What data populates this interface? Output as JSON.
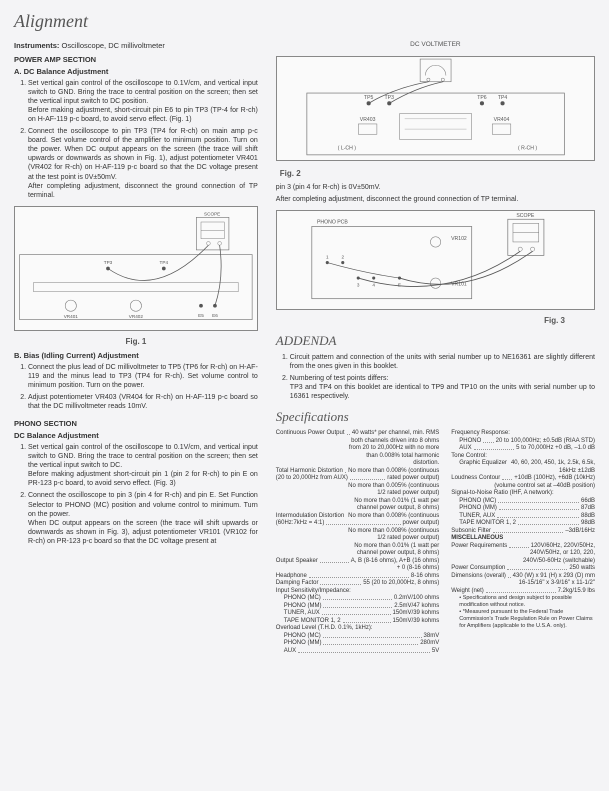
{
  "title": "Alignment",
  "instruments_label": "Instruments:",
  "instruments_value": "Oscilloscope, DC millivoltmeter",
  "power_amp_section": "POWER AMP SECTION",
  "dc_balance_heading": "A. DC Balance Adjustment",
  "pa_step1": "Set vertical gain control of the oscilloscope to 0.1V/cm, and vertical input switch to GND. Bring the trace to central position on the screen; then set the vertical input switch to DC position.",
  "pa_step1b": "Before making adjustment, short-circuit pin E6 to pin TP3 (TP-4 for R-ch) on H-AF-119 p-c board, to avoid servo effect. (Fig. 1)",
  "pa_step2": "Connect the oscilloscope to pin TP3 (TP4 for R-ch) on main amp p-c board. Set volume control of the amplifier to minimum position. Turn on the power. When DC output appears on the screen (the trace will shift upwards or downwards as shown in Fig. 1), adjust potentiometer VR401 (VR402 for R-ch) on H-AF-119 p-c board so that the DC voltage present at the test point is 0V±50mV.",
  "pa_step2b": "After completing adjustment, disconnect the ground connection of TP terminal.",
  "fig1_caption": "Fig. 1",
  "bias_heading": "B. Bias (Idling Current) Adjustment",
  "bias_step1": "Connect the plus lead of DC millivoltmeter to TP5 (TP6 for R-ch) on H-AF-119 and the minus lead to TP3 (TP4 for R-ch). Set volume control to minimum position. Turn on the power.",
  "bias_step2": "Adjust potentiometer VR403 (VR404 for R-ch) on H-AF-119 p-c board so that the DC millivoltmeter reads 10mV.",
  "phono_section": "PHONO SECTION",
  "phono_dc_heading": "DC Balance Adjustment",
  "ph_step1": "Set vertical gain control of the oscilloscope to 0.1V/cm, and vertical input switch to GND. Bring the trace to central position on the screen; then set the vertical input switch to DC.",
  "ph_step1b": "Before making adjustment short-circuit pin 1 (pin 2 for R-ch) to pin E on PR-123 p-c board, to avoid servo effect. (Fig. 3)",
  "ph_step2": "Connect the oscilloscope to pin 3 (pin 4 for R-ch) and pin E. Set Function Selector to PHONO (MC) position and volume control to minimum. Turn on the power.",
  "ph_step2b": "When DC output appears on the screen (the trace will shift upwards or downwards as shown in Fig. 3), adjust potentiometer VR101 (VR102 for R-ch) on PR-123 p-c board so that the DC voltage present at",
  "dc_voltmeter_label": "DC VOLTMETER",
  "fig2_caption": "Fig. 2",
  "fig2_followup1": "pin 3 (pin 4 for R-ch) is 0V±50mV.",
  "fig2_followup2": "After completing adjustment, disconnect the ground connection of TP terminal.",
  "fig3_caption": "Fig. 3",
  "addenda_title": "ADDENDA",
  "addenda1": "Circuit pattern and connection of the units with serial number up to NE16361 are slightly different from the ones given in this booklet.",
  "addenda2": "Numbering of test points differs:",
  "addenda2b": "TP3 and TP4 on this booklet are identical to TP9 and TP10 on the units with serial number up to 16361 respectively.",
  "specs_title": "Specifications",
  "specs_left": [
    {
      "l": "Continuous Power Output",
      "v": "40 watts* per channel, min. RMS"
    },
    {
      "sub": true,
      "v": "both channels driven into 8 ohms"
    },
    {
      "sub": true,
      "v": "from 20 to 20,000Hz with no more"
    },
    {
      "sub": true,
      "v": "than 0.008% total harmonic"
    },
    {
      "sub": true,
      "v": "distortion."
    },
    {
      "l": "Total Harmonic Distortion",
      "v": "No more than 0.008% (continuous"
    },
    {
      "l": "(20 to 20,000Hz from AUX)",
      "v": "rated power output)",
      "cont": true
    },
    {
      "sub": true,
      "v": "No more than 0.005% (continuous"
    },
    {
      "sub": true,
      "v": "1/2 rated power output)"
    },
    {
      "sub": true,
      "v": "No more than 0.01% (1 watt per"
    },
    {
      "sub": true,
      "v": "channel power output, 8 ohms)"
    },
    {
      "l": "Intermodulation Distortion",
      "v": "No more than 0.008% (continuous"
    },
    {
      "l": "(60Hz:7kHz = 4:1)",
      "v": "power output)",
      "cont": true
    },
    {
      "sub": true,
      "v": "No more than 0.008% (continuous"
    },
    {
      "sub": true,
      "v": "1/2 rated power output)"
    },
    {
      "sub": true,
      "v": "No more than 0.01% (1 watt per"
    },
    {
      "sub": true,
      "v": "channel power output, 8 ohms)"
    },
    {
      "l": "Output Speaker",
      "v": "A, B (8-16 ohms), A+B (16 ohms)"
    },
    {
      "sub": true,
      "v": "+ 0 (8-16 ohms)"
    },
    {
      "l": "Headphone",
      "v": "8-16 ohms"
    },
    {
      "l": "Damping Factor",
      "v": "55 (20 to 20,000Hz, 8 ohms)"
    },
    {
      "l": "Input Sensitivity/Impedance:",
      "v": ""
    },
    {
      "l": "PHONO (MC)",
      "v": "0.2mV/100 ohms",
      "sub": true
    },
    {
      "l": "PHONO (MM)",
      "v": "2.5mV/47 kohms",
      "sub": true
    },
    {
      "l": "TUNER, AUX",
      "v": "150mV/39 kohms",
      "sub": true
    },
    {
      "l": "TAPE MONITOR 1, 2",
      "v": "150mV/39 kohms",
      "sub": true
    },
    {
      "l": "Overload Level (T.H.D. 0.1%, 1kHz):",
      "v": ""
    },
    {
      "l": "PHONO (MC)",
      "v": "38mV",
      "sub": true
    },
    {
      "l": "PHONO (MM)",
      "v": "280mV",
      "sub": true
    },
    {
      "l": "AUX",
      "v": "5V",
      "sub": true
    }
  ],
  "specs_right": [
    {
      "l": "Frequency Response:",
      "v": ""
    },
    {
      "l": "PHONO",
      "v": "20 to 100,000Hz; ±0.5dB (RIAA STD)",
      "sub": true
    },
    {
      "l": "AUX",
      "v": "5 to 70,000Hz +0 dB, –1.0 dB",
      "sub": true
    },
    {
      "l": "Tone Control:",
      "v": ""
    },
    {
      "l": "Graphic Equalizer",
      "v": "40, 60, 200, 450, 1k, 2.5k, 6.5k,",
      "sub": true
    },
    {
      "sub": true,
      "v": "16kHz ±12dB"
    },
    {
      "l": "Loudness Contour",
      "v": "+10dB (100Hz), +6dB (10kHz)"
    },
    {
      "sub": true,
      "v": "(volume control set at –40dB position)"
    },
    {
      "l": "Signal-to-Noise Ratio (IHF, A network):",
      "v": ""
    },
    {
      "l": "PHONO (MC)",
      "v": "66dB",
      "sub": true
    },
    {
      "l": "PHONO (MM)",
      "v": "87dB",
      "sub": true
    },
    {
      "l": "TUNER, AUX",
      "v": "88dB",
      "sub": true
    },
    {
      "l": "TAPE MONITOR 1, 2",
      "v": "98dB",
      "sub": true
    },
    {
      "l": "Subsonic Filter",
      "v": "–3dB/16Hz"
    },
    {
      "l": "MISCELLANEOUS",
      "v": "",
      "bold": true
    },
    {
      "l": "Power Requirements",
      "v": "120V/60Hz, 220V/50Hz,"
    },
    {
      "sub": true,
      "v": "240V/50Hz, or 120, 220,"
    },
    {
      "sub": true,
      "v": "240V/50-60Hz (switchable)"
    },
    {
      "l": "Power Consumption",
      "v": "250 watts"
    },
    {
      "l": "Dimensions (overall)",
      "v": "430 (W) x 91 (H) x 293 (D) mm"
    },
    {
      "sub": true,
      "v": "16-15/16\" x 3-9/16\" x 11-1/2\""
    },
    {
      "l": "Weight (net)",
      "v": "7.2kg/15.9 lbs"
    },
    {
      "note": "• Specifications and design subject to possible modification without notice."
    },
    {
      "note": "• *Measured pursuant to the Federal Trade Commission's Trade Regulation Rule on Power Claims for Amplifiers (applicable to the U.S.A. only)."
    }
  ],
  "fig1_labels": {
    "scope": "SCOPE",
    "tp3": "TP3",
    "tp4": "TP4",
    "vr401": "VR401",
    "vr402": "VR402",
    "e5": "E5",
    "e6": "E6",
    "dot": "●",
    "arrow": "►"
  },
  "fig2_labels": {
    "tp5": "TP5",
    "tp6": "TP6",
    "tp3": "TP3",
    "tp4": "TP4",
    "vr403": "VR403",
    "vr404": "VR404",
    "lch": "( L-CH )",
    "rch": "( R-CH )"
  },
  "fig3_labels": {
    "phono": "PHONO PCB",
    "scope": "SCOPE",
    "vr101": "VR101",
    "vr102": "VR102",
    "p1": "1",
    "p2": "2",
    "p3": "3",
    "p4": "4",
    "pe": "E"
  }
}
